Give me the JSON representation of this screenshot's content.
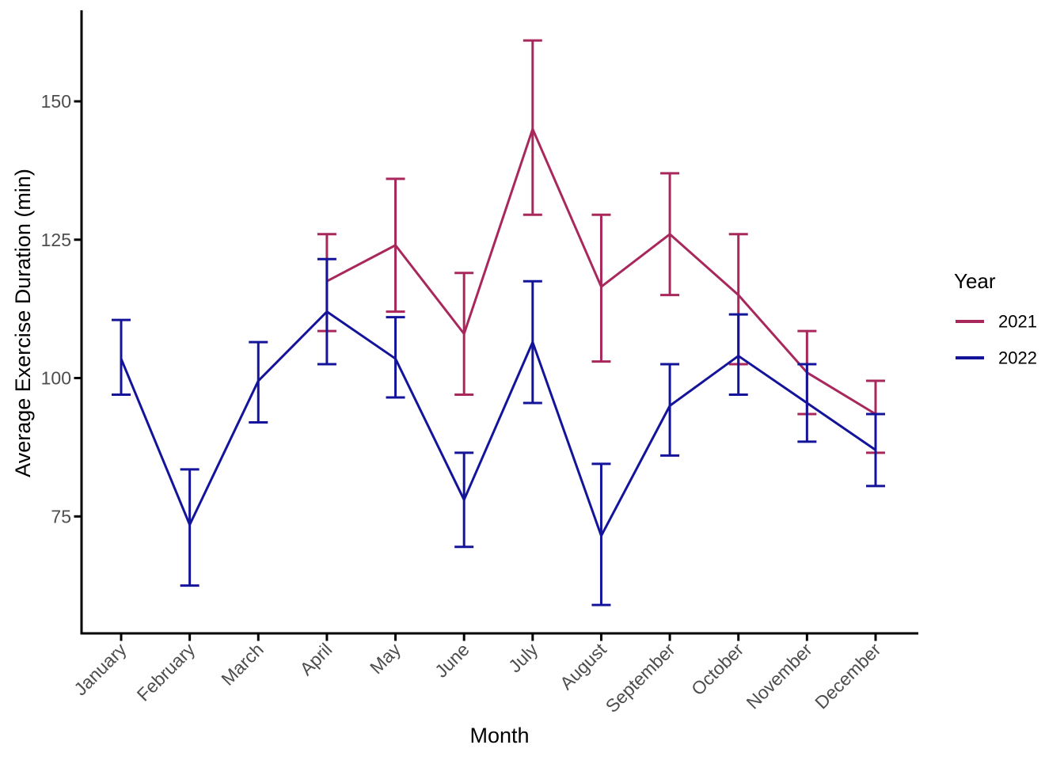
{
  "chart_data": {
    "type": "line",
    "title": "",
    "xlabel": "Month",
    "ylabel": "Average Exercise Duration (min)",
    "categories": [
      "January",
      "February",
      "March",
      "April",
      "May",
      "June",
      "July",
      "August",
      "September",
      "October",
      "November",
      "December"
    ],
    "y_ticks": [
      75,
      100,
      125,
      150
    ],
    "ylim": [
      55,
      165
    ],
    "grid": false,
    "error_bars": true,
    "legend": {
      "title": "Year",
      "position": "right"
    },
    "series": [
      {
        "name": "2021",
        "color": "#A8285C",
        "values": [
          null,
          null,
          null,
          117.5,
          124,
          108,
          145,
          116.5,
          126,
          115,
          101,
          93.5
        ],
        "error_low": [
          null,
          null,
          null,
          108.5,
          112,
          97,
          129.5,
          103,
          115,
          102.5,
          93.5,
          86.5
        ],
        "error_high": [
          null,
          null,
          null,
          126,
          136,
          119,
          161,
          129.5,
          137,
          126,
          108.5,
          99.5
        ]
      },
      {
        "name": "2022",
        "color": "#14149B",
        "values": [
          103.5,
          73.5,
          99.5,
          112,
          103.5,
          78,
          106.5,
          71.5,
          95,
          104,
          95.5,
          87
        ],
        "error_low": [
          97,
          62.5,
          92,
          102.5,
          96.5,
          69.5,
          95.5,
          59,
          86,
          97,
          88.5,
          80.5
        ],
        "error_high": [
          110.5,
          83.5,
          106.5,
          121.5,
          111,
          86.5,
          117.5,
          84.5,
          102.5,
          111.5,
          102.5,
          93.5
        ]
      }
    ]
  }
}
